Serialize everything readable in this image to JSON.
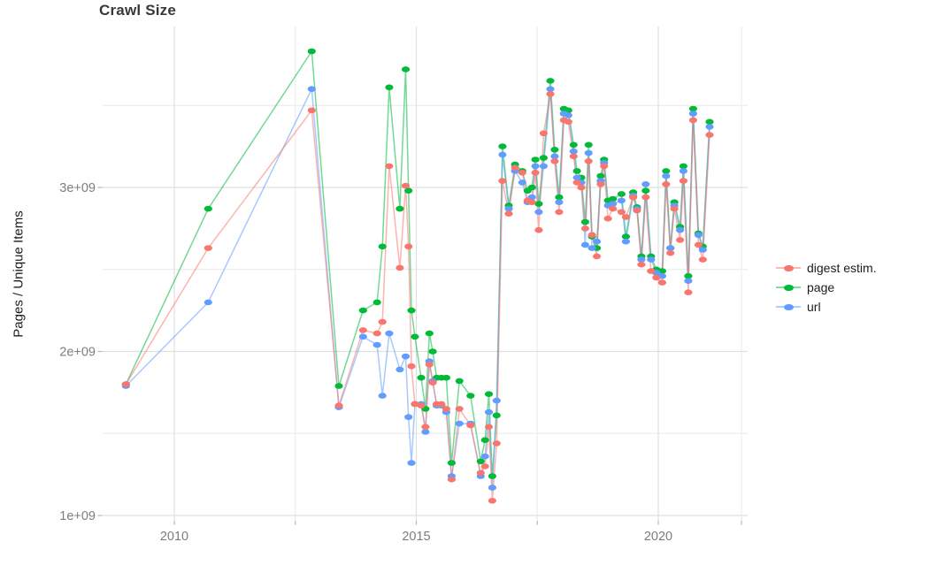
{
  "chart_data": {
    "type": "line",
    "title": "Crawl Size",
    "xlabel": "",
    "ylabel": "Pages / Unique Items",
    "y_unit_scale": 1000000000,
    "y_tick_labels": [
      "1e+09",
      "2e+09",
      "3e+09"
    ],
    "y_major_ticks_billions": [
      1,
      2,
      3
    ],
    "y_minor_ticks_billions": [
      1.5,
      2.5,
      3.5
    ],
    "x_tick_labels": [
      "2010",
      "2015",
      "2020"
    ],
    "x_major_ticks": [
      2010,
      2015,
      2020
    ],
    "x_minor_ticks": [
      2012.5,
      2017.5,
      2021.72
    ],
    "xlim": [
      2008.55,
      2021.85
    ],
    "ylim_billions": [
      0.97,
      3.98
    ],
    "grid": true,
    "legend_position": "right",
    "x": [
      2009.0,
      2010.7,
      2012.84,
      2013.4,
      2013.9,
      2014.19,
      2014.3,
      2014.44,
      2014.66,
      2014.78,
      2014.84,
      2014.9,
      2014.97,
      2015.1,
      2015.19,
      2015.27,
      2015.34,
      2015.42,
      2015.52,
      2015.62,
      2015.73,
      2015.89,
      2016.12,
      2016.33,
      2016.42,
      2016.5,
      2016.57,
      2016.66,
      2016.78,
      2016.91,
      2017.04,
      2017.19,
      2017.3,
      2017.39,
      2017.46,
      2017.53,
      2017.63,
      2017.77,
      2017.86,
      2017.95,
      2018.05,
      2018.14,
      2018.25,
      2018.32,
      2018.41,
      2018.49,
      2018.56,
      2018.63,
      2018.73,
      2018.81,
      2018.88,
      2018.96,
      2019.06,
      2019.24,
      2019.33,
      2019.48,
      2019.56,
      2019.65,
      2019.74,
      2019.85,
      2019.96,
      2020.08,
      2020.16,
      2020.25,
      2020.33,
      2020.45,
      2020.52,
      2020.62,
      2020.72,
      2020.83,
      2020.92,
      2021.06
    ],
    "series": [
      {
        "name": "digest estim.",
        "color": "#F8766D",
        "values_billions": [
          1.8,
          2.63,
          3.47,
          1.67,
          2.13,
          2.11,
          2.18,
          3.13,
          2.51,
          3.01,
          2.64,
          1.91,
          1.68,
          1.67,
          1.54,
          1.92,
          1.81,
          1.68,
          1.68,
          1.65,
          1.22,
          1.65,
          1.55,
          1.26,
          1.3,
          1.54,
          1.09,
          1.44,
          3.04,
          2.84,
          3.12,
          3.09,
          2.92,
          2.91,
          3.09,
          2.74,
          3.33,
          3.57,
          3.16,
          2.85,
          3.41,
          3.4,
          3.19,
          3.03,
          3.0,
          2.75,
          3.16,
          2.71,
          2.58,
          3.02,
          3.13,
          2.81,
          2.87,
          2.85,
          2.82,
          2.94,
          2.86,
          2.53,
          2.94,
          2.49,
          2.45,
          2.42,
          3.02,
          2.6,
          2.87,
          2.68,
          3.04,
          2.36,
          3.41,
          2.65,
          2.56,
          3.32
        ]
      },
      {
        "name": "page",
        "color": "#00BA38",
        "values_billions": [
          1.8,
          2.87,
          3.83,
          1.79,
          2.25,
          2.3,
          2.64,
          3.61,
          2.87,
          3.72,
          2.98,
          2.25,
          2.09,
          1.84,
          1.65,
          2.11,
          2.0,
          1.84,
          1.84,
          1.84,
          1.32,
          1.82,
          1.73,
          1.33,
          1.46,
          1.74,
          1.24,
          1.61,
          3.25,
          2.89,
          3.14,
          3.1,
          2.98,
          3.0,
          3.17,
          2.9,
          3.18,
          3.65,
          3.23,
          2.94,
          3.48,
          3.47,
          3.26,
          3.1,
          3.06,
          2.79,
          3.26,
          2.7,
          2.63,
          3.07,
          3.17,
          2.92,
          2.93,
          2.96,
          2.7,
          2.97,
          2.88,
          2.58,
          2.98,
          2.58,
          2.5,
          2.49,
          3.1,
          2.63,
          2.91,
          2.76,
          3.13,
          2.46,
          3.48,
          2.72,
          2.64,
          3.4
        ]
      },
      {
        "name": "url",
        "color": "#619CFF",
        "values_billions": [
          1.79,
          2.3,
          3.6,
          1.66,
          2.09,
          2.04,
          1.73,
          2.11,
          1.89,
          1.97,
          1.6,
          1.32,
          1.68,
          1.68,
          1.51,
          1.94,
          1.82,
          1.67,
          1.67,
          1.63,
          1.24,
          1.56,
          1.56,
          1.24,
          1.36,
          1.63,
          1.17,
          1.7,
          3.2,
          2.87,
          3.1,
          3.03,
          2.91,
          2.94,
          3.13,
          2.85,
          3.13,
          3.6,
          3.19,
          2.91,
          3.45,
          3.44,
          3.22,
          3.06,
          3.03,
          2.65,
          3.21,
          2.63,
          2.67,
          3.04,
          3.15,
          2.89,
          2.9,
          2.92,
          2.67,
          2.95,
          2.87,
          2.56,
          3.02,
          2.56,
          2.48,
          2.46,
          3.07,
          2.63,
          2.89,
          2.74,
          3.1,
          2.43,
          3.45,
          2.71,
          2.62,
          3.37
        ]
      }
    ],
    "draw_order": [
      1,
      2,
      0
    ],
    "style": {
      "background": "#ffffff",
      "grid_major_color": "#e0e0e0",
      "grid_minor_color": "#ededed",
      "tick_mark_color": "#b8b8b8",
      "axis_text_color": "#7d7d7d",
      "title_color": "#383838",
      "text_color": "#1c1c1c",
      "line_opacity": 0.55,
      "line_width": 1.5,
      "dot_rx": 4.6,
      "dot_ry": 3.3
    }
  },
  "legend": {
    "items": [
      {
        "label": "digest estim."
      },
      {
        "label": "page"
      },
      {
        "label": "url"
      }
    ]
  }
}
